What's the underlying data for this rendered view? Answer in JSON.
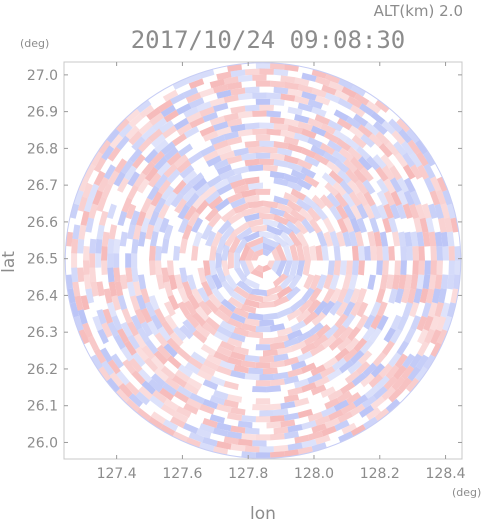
{
  "header": {
    "altitude_label": "ALT(km)  2.0",
    "timestamp": "2017/10/24 09:08:30"
  },
  "chart_data": {
    "type": "heatmap",
    "title": "2017/10/24 09:08:30",
    "xlabel": "lon",
    "ylabel": "lat",
    "x_unit": "(deg)",
    "y_unit": "(deg)",
    "xlim": [
      127.24,
      128.45
    ],
    "ylim": [
      25.955,
      27.035
    ],
    "x_ticks": [
      127.4,
      127.6,
      127.8,
      128.0,
      128.2,
      128.4
    ],
    "x_tick_labels": [
      "127.4",
      "127.6",
      "127.8",
      "128.0",
      "128.2",
      "128.4"
    ],
    "y_ticks": [
      26.0,
      26.1,
      26.2,
      26.3,
      26.4,
      26.5,
      26.6,
      26.7,
      26.8,
      26.9,
      27.0
    ],
    "y_tick_labels": [
      "26.0",
      "26.1",
      "26.2",
      "26.3",
      "26.4",
      "26.5",
      "26.6",
      "26.7",
      "26.8",
      "26.9",
      "27.0"
    ],
    "radar_center": {
      "lon": 127.845,
      "lat": 26.495
    },
    "radar_radius_deg_lat": 0.538,
    "field_colors": {
      "positive": "#f4a8a8",
      "negative": "#a8b4f4",
      "zero": "#ffffff"
    }
  }
}
